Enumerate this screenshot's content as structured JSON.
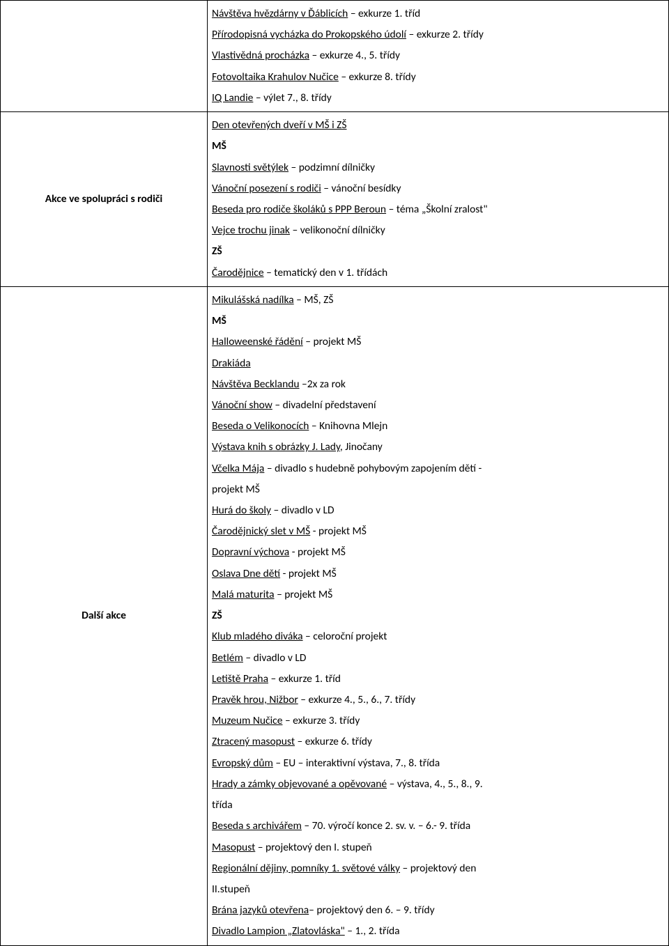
{
  "rows": [
    {
      "label": "",
      "lines": [
        {
          "seg": [
            {
              "t": "Návštěva hvězdárny v Ďáblicích",
              "u": 1
            },
            {
              "t": " – exkurze 1. tříd"
            }
          ]
        },
        {
          "seg": [
            {
              "t": "Přírodopisná vycházka do Prokopského údolí",
              "u": 1
            },
            {
              "t": " – exkurze 2. třídy"
            }
          ]
        },
        {
          "seg": [
            {
              "t": "Vlastivědná procházka",
              "u": 1
            },
            {
              "t": " – exkurze 4., 5. třídy"
            }
          ]
        },
        {
          "seg": [
            {
              "t": "Fotovoltaika Krahulov Nučice",
              "u": 1
            },
            {
              "t": " – exkurze 8. třídy"
            }
          ]
        },
        {
          "seg": [
            {
              "t": "IQ Landie",
              "u": 1
            },
            {
              "t": " – výlet 7., 8. třídy"
            }
          ]
        }
      ]
    },
    {
      "label": "Akce ve spolupráci s rodiči",
      "lines": [
        {
          "seg": [
            {
              "t": "Den otevřených dveří v MŠ i ZŠ",
              "u": 1
            }
          ]
        },
        {
          "seg": [
            {
              "t": "MŠ",
              "b": 1
            }
          ]
        },
        {
          "seg": [
            {
              "t": "Slavnosti světýlek",
              "u": 1
            },
            {
              "t": " – podzimní dílničky"
            }
          ]
        },
        {
          "seg": [
            {
              "t": "Vánoční posezení s rodiči",
              "u": 1
            },
            {
              "t": " – vánoční besídky"
            }
          ]
        },
        {
          "seg": [
            {
              "t": "Beseda pro rodiče školáků s PPP Beroun",
              "u": 1
            },
            {
              "t": " – téma „Školní zralost\""
            }
          ]
        },
        {
          "seg": [
            {
              "t": "Vejce trochu jinak",
              "u": 1
            },
            {
              "t": " – velikonoční dílničky"
            }
          ]
        },
        {
          "seg": [
            {
              "t": "ZŠ",
              "b": 1
            }
          ]
        },
        {
          "seg": [
            {
              "t": "Čarodějnice",
              "u": 1
            },
            {
              "t": " – tematický den v 1. třídách"
            }
          ]
        }
      ]
    },
    {
      "label": "Další akce",
      "lines": [
        {
          "seg": [
            {
              "t": "Mikulášská nadílka",
              "u": 1
            },
            {
              "t": " – MŠ, ZŠ"
            }
          ]
        },
        {
          "seg": [
            {
              "t": "MŠ",
              "b": 1
            }
          ]
        },
        {
          "seg": [
            {
              "t": "Halloweenské řádění",
              "u": 1
            },
            {
              "t": " – projekt MŠ"
            }
          ]
        },
        {
          "seg": [
            {
              "t": "Drakiáda",
              "u": 1
            }
          ]
        },
        {
          "seg": [
            {
              "t": "Návštěva Becklandu",
              "u": 1
            },
            {
              "t": " –2x za rok"
            }
          ]
        },
        {
          "seg": [
            {
              "t": "Vánoční show",
              "u": 1
            },
            {
              "t": " – divadelní představení"
            }
          ]
        },
        {
          "seg": [
            {
              "t": "Beseda o Velikonocích",
              "u": 1
            },
            {
              "t": " – Knihovna Mlejn"
            }
          ]
        },
        {
          "seg": [
            {
              "t": "Výstava knih s obrázky J. Lady",
              "u": 1
            },
            {
              "t": ", Jinočany"
            }
          ]
        },
        {
          "seg": [
            {
              "t": "Včelka Mája",
              "u": 1
            },
            {
              "t": " – divadlo s hudebně pohybovým zapojením dětí -"
            }
          ]
        },
        {
          "seg": [
            {
              "t": "projekt MŠ"
            }
          ]
        },
        {
          "seg": [
            {
              "t": "Hurá do školy",
              "u": 1
            },
            {
              "t": " – divadlo v LD"
            }
          ]
        },
        {
          "seg": [
            {
              "t": "Čarodějnický slet v MŠ",
              "u": 1
            },
            {
              "t": " - projekt MŠ"
            }
          ]
        },
        {
          "seg": [
            {
              "t": "Dopravní výchova",
              "u": 1
            },
            {
              "t": " - projekt MŠ"
            }
          ]
        },
        {
          "seg": [
            {
              "t": "Oslava Dne dětí",
              "u": 1
            },
            {
              "t": " - projekt MŠ"
            }
          ]
        },
        {
          "seg": [
            {
              "t": "Malá maturita",
              "u": 1
            },
            {
              "t": " – projekt MŠ"
            }
          ]
        },
        {
          "seg": [
            {
              "t": "ZŠ",
              "b": 1
            }
          ]
        },
        {
          "seg": [
            {
              "t": "Klub mladého diváka",
              "u": 1
            },
            {
              "t": " – celoroční projekt"
            }
          ]
        },
        {
          "seg": [
            {
              "t": "Betlém",
              "u": 1
            },
            {
              "t": " – divadlo v LD"
            }
          ]
        },
        {
          "seg": [
            {
              "t": "Letiště Praha",
              "u": 1
            },
            {
              "t": " – exkurze 1. tříd"
            }
          ]
        },
        {
          "seg": [
            {
              "t": "Pravěk hrou, Nižbor",
              "u": 1
            },
            {
              "t": " – exkurze 4., 5., 6., 7. třídy"
            }
          ]
        },
        {
          "seg": [
            {
              "t": "Muzeum Nučice",
              "u": 1
            },
            {
              "t": " – exkurze 3. třídy"
            }
          ]
        },
        {
          "seg": [
            {
              "t": "Ztracený masopust",
              "u": 1
            },
            {
              "t": " – exkurze 6. třídy"
            }
          ]
        },
        {
          "seg": [
            {
              "t": "Evropský dům",
              "u": 1
            },
            {
              "t": " – EU – interaktivní výstava, 7., 8. třída"
            }
          ]
        },
        {
          "seg": [
            {
              "t": "Hrady a zámky objevované a opěvované",
              "u": 1
            },
            {
              "t": " – výstava, 4., 5., 8., 9."
            }
          ]
        },
        {
          "seg": [
            {
              "t": "třída"
            }
          ]
        },
        {
          "seg": [
            {
              "t": "Beseda s archivářem",
              "u": 1
            },
            {
              "t": " – 70. výročí konce 2. sv. v. –  6.- 9. třída"
            }
          ]
        },
        {
          "seg": [
            {
              "t": "Masopust",
              "u": 1
            },
            {
              "t": " – projektový den I. stupeň"
            }
          ]
        },
        {
          "seg": [
            {
              "t": "Regionální dějiny, pomníky 1. světové války",
              "u": 1
            },
            {
              "t": " – projektový den"
            }
          ]
        },
        {
          "seg": [
            {
              "t": "II.stupeň"
            }
          ]
        },
        {
          "seg": [
            {
              "t": "Brána jazyků otevřena",
              "u": 1
            },
            {
              "t": "– projektový den 6.  – 9. třídy"
            }
          ]
        },
        {
          "seg": [
            {
              "t": "Divadlo Lampion „Zlatovláska\"",
              "u": 1
            },
            {
              "t": " – 1., 2. třída"
            }
          ]
        }
      ]
    }
  ]
}
